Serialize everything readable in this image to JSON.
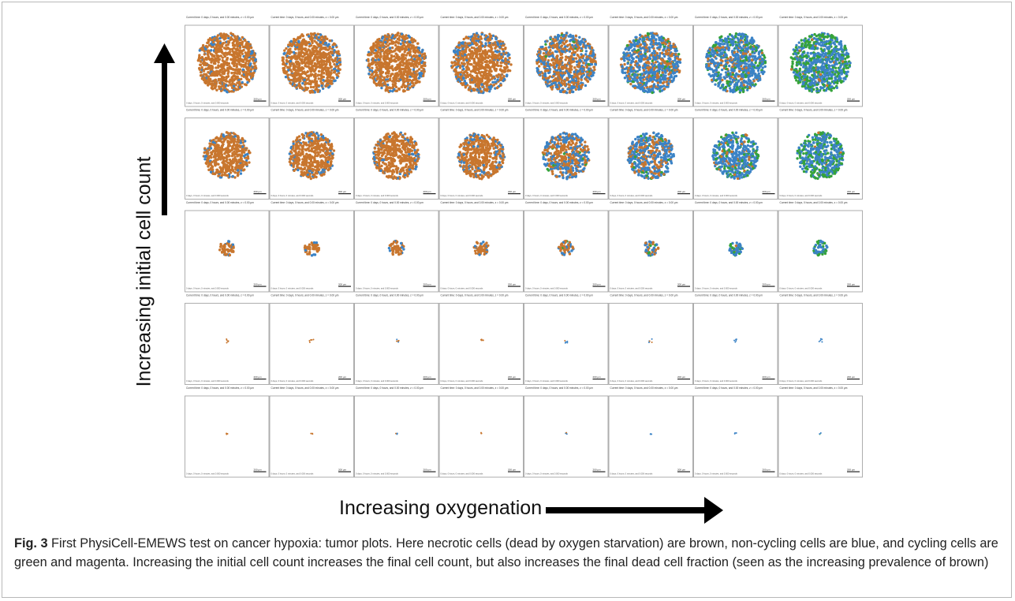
{
  "axes": {
    "y_title": "Increasing initial cell count",
    "x_title": "Increasing oxygenation"
  },
  "caption": {
    "label": "Fig. 3",
    "text": " First PhysiCell-EMEWS test on cancer hypoxia: tumor plots. Here necrotic cells (dead by oxygen starvation) are brown, non-cycling cells are blue, and cycling cells are green and magenta. Increasing the initial cell count increases the final cell count, but also increases the final dead cell fraction (seen as the increasing prevalence of brown)"
  },
  "panel_text": {
    "header": "Current time: 0 days, 0 hours, and 0.00 minutes, z = 0.00 μm",
    "footer": "0 days, 0 hours, 0 minutes, and 0.000 seconds",
    "scale_bar": "200 μm"
  },
  "legend_colors": {
    "necrotic": "#c8762e",
    "non_cycling": "#3b83c6",
    "cycling": "#35a33a",
    "background": "#ffffff"
  },
  "grid": {
    "rows": 5,
    "columns": 8,
    "tumor_size_by_row": [
      1.0,
      0.78,
      0.25,
      0.08,
      0.02
    ],
    "oxygenation_mix_by_column": [
      {
        "necrotic": 1.0,
        "non_cycling": 0.0,
        "cycling": 0.0
      },
      {
        "necrotic": 1.0,
        "non_cycling": 0.0,
        "cycling": 0.0
      },
      {
        "necrotic": 1.0,
        "non_cycling": 0.0,
        "cycling": 0.0
      },
      {
        "necrotic": 0.92,
        "non_cycling": 0.08,
        "cycling": 0.0
      },
      {
        "necrotic": 0.6,
        "non_cycling": 0.38,
        "cycling": 0.02
      },
      {
        "necrotic": 0.35,
        "non_cycling": 0.6,
        "cycling": 0.05
      },
      {
        "necrotic": 0.15,
        "non_cycling": 0.7,
        "cycling": 0.15
      },
      {
        "necrotic": 0.03,
        "non_cycling": 0.62,
        "cycling": 0.35
      }
    ]
  }
}
